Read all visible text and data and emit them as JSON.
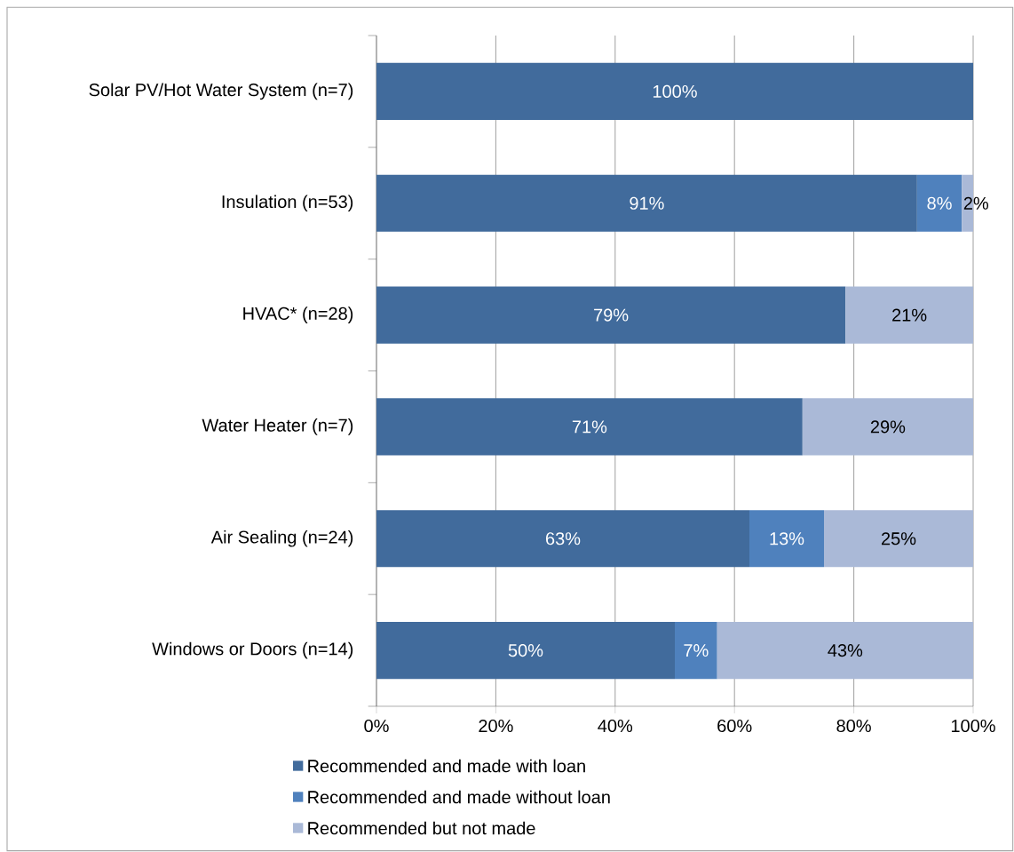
{
  "chart_data": {
    "type": "bar",
    "orientation": "horizontal",
    "stacked": true,
    "categories": [
      "Solar PV/Hot Water System (n=7)",
      "Insulation (n=53)",
      "HVAC* (n=28)",
      "Water Heater (n=7)",
      "Air Sealing (n=24)",
      "Windows or Doors (n=14)"
    ],
    "series": [
      {
        "name": "Recommended and made with loan",
        "color": "#416b9c",
        "values": [
          100,
          90.6,
          78.6,
          71.4,
          62.5,
          50
        ],
        "value_labels": [
          "100%",
          "91%",
          "79%",
          "71%",
          "63%",
          "50%"
        ]
      },
      {
        "name": "Recommended and made without loan",
        "color": "#4f81bd",
        "values": [
          null,
          7.5,
          null,
          null,
          12.5,
          7.1
        ],
        "value_labels": [
          null,
          "8%",
          null,
          null,
          "13%",
          "7%"
        ]
      },
      {
        "name": "Recommended but not made",
        "color": "#aab9d7",
        "values": [
          null,
          1.9,
          21.4,
          28.6,
          25,
          42.9
        ],
        "value_labels": [
          null,
          "2%",
          "21%",
          "29%",
          "25%",
          "43%"
        ]
      }
    ],
    "xlim": [
      0,
      100
    ],
    "xticks": [
      {
        "value": 0,
        "label": "0%"
      },
      {
        "value": 20,
        "label": "20%"
      },
      {
        "value": 40,
        "label": "40%"
      },
      {
        "value": 60,
        "label": "60%"
      },
      {
        "value": 80,
        "label": "80%"
      },
      {
        "value": 100,
        "label": "100%"
      }
    ],
    "grid": "x",
    "legend": "bottom"
  }
}
